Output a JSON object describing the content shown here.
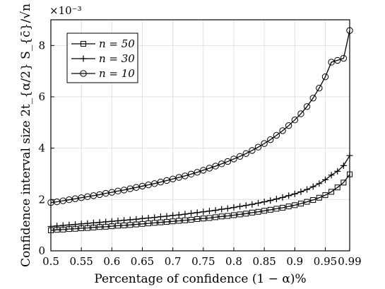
{
  "chart_data": {
    "type": "line",
    "xlabel": "Percentage of confidence (1 − α)%",
    "ylabel": "Confidence interval size 2t_{α/2} S_{c̄}/√n",
    "y_multiplier": "×10⁻³",
    "xlim": [
      0.5,
      0.99
    ],
    "ylim": [
      0,
      9
    ],
    "x_ticks": [
      "0.5",
      "0.55",
      "0.6",
      "0.65",
      "0.7",
      "0.75",
      "0.8",
      "0.85",
      "0.9",
      "0.95",
      "0.99"
    ],
    "x_tick_values": [
      0.5,
      0.55,
      0.6,
      0.65,
      0.7,
      0.75,
      0.8,
      0.85,
      0.9,
      0.95,
      0.99
    ],
    "y_ticks": [
      "0",
      "2",
      "4",
      "6",
      "8"
    ],
    "y_tick_values": [
      0,
      2,
      4,
      6,
      8
    ],
    "grid": true,
    "legend_position": "top-left",
    "x": [
      0.5,
      0.51,
      0.52,
      0.53,
      0.54,
      0.55,
      0.56,
      0.57,
      0.58,
      0.59,
      0.6,
      0.61,
      0.62,
      0.63,
      0.64,
      0.65,
      0.66,
      0.67,
      0.68,
      0.69,
      0.7,
      0.71,
      0.72,
      0.73,
      0.74,
      0.75,
      0.76,
      0.77,
      0.78,
      0.79,
      0.8,
      0.81,
      0.82,
      0.83,
      0.84,
      0.85,
      0.86,
      0.87,
      0.88,
      0.89,
      0.9,
      0.91,
      0.92,
      0.93,
      0.94,
      0.95,
      0.96,
      0.97,
      0.98,
      0.99
    ],
    "series": [
      {
        "name": "n = 50",
        "marker": "square",
        "values": [
          0.8,
          0.82,
          0.83,
          0.85,
          0.86,
          0.88,
          0.89,
          0.91,
          0.93,
          0.94,
          0.96,
          0.98,
          0.99,
          1.01,
          1.03,
          1.05,
          1.07,
          1.09,
          1.11,
          1.13,
          1.15,
          1.17,
          1.19,
          1.21,
          1.24,
          1.26,
          1.28,
          1.31,
          1.34,
          1.36,
          1.39,
          1.42,
          1.45,
          1.49,
          1.52,
          1.56,
          1.6,
          1.64,
          1.68,
          1.73,
          1.78,
          1.84,
          1.91,
          1.98,
          2.07,
          2.17,
          2.3,
          2.47,
          2.66,
          2.98
        ]
      },
      {
        "name": "n = 30",
        "marker": "plus",
        "values": [
          0.95,
          0.97,
          0.99,
          1.01,
          1.03,
          1.05,
          1.07,
          1.09,
          1.11,
          1.13,
          1.15,
          1.17,
          1.19,
          1.21,
          1.23,
          1.26,
          1.28,
          1.3,
          1.33,
          1.35,
          1.38,
          1.4,
          1.43,
          1.46,
          1.49,
          1.52,
          1.55,
          1.58,
          1.62,
          1.65,
          1.69,
          1.73,
          1.77,
          1.81,
          1.86,
          1.91,
          1.96,
          2.02,
          2.08,
          2.15,
          2.22,
          2.3,
          2.39,
          2.5,
          2.62,
          2.77,
          2.95,
          3.1,
          3.32,
          3.71
        ]
      },
      {
        "name": "n = 10",
        "marker": "circle",
        "values": [
          1.88,
          1.91,
          1.95,
          1.99,
          2.03,
          2.07,
          2.11,
          2.15,
          2.19,
          2.24,
          2.28,
          2.33,
          2.37,
          2.42,
          2.47,
          2.52,
          2.57,
          2.62,
          2.68,
          2.74,
          2.8,
          2.86,
          2.92,
          2.99,
          3.06,
          3.14,
          3.22,
          3.3,
          3.39,
          3.48,
          3.58,
          3.68,
          3.79,
          3.91,
          4.04,
          4.18,
          4.33,
          4.5,
          4.68,
          4.88,
          5.1,
          5.34,
          5.62,
          5.95,
          6.34,
          6.78,
          7.35,
          7.42,
          7.5,
          8.58
        ]
      }
    ]
  }
}
